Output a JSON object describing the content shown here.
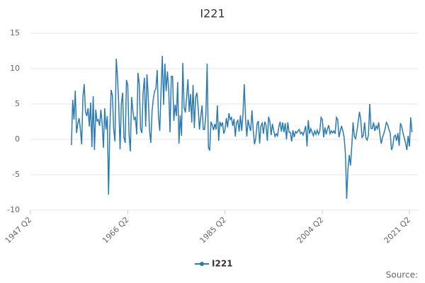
{
  "chart_data": {
    "type": "line",
    "title": "I221",
    "source": "Source:",
    "categories": [
      "1947 Q2",
      null,
      null,
      null,
      null,
      null,
      null,
      null,
      null,
      null,
      null,
      null,
      null,
      null,
      null,
      null,
      null,
      null,
      null,
      null,
      null,
      null,
      null,
      null,
      null,
      null,
      null,
      null,
      null,
      null,
      null,
      null,
      null,
      null,
      null,
      null,
      null,
      null,
      null,
      null,
      null,
      null,
      null,
      null,
      null,
      null,
      null,
      null,
      null,
      null,
      null,
      null,
      null,
      null,
      null,
      null,
      null,
      null,
      null,
      null,
      null,
      null,
      null,
      null,
      null,
      null,
      null,
      null,
      null,
      null,
      null,
      null,
      null,
      null,
      null,
      null,
      "1966 Q2",
      null,
      null,
      null,
      null,
      null,
      null,
      null,
      null,
      null,
      null,
      null,
      null,
      null,
      null,
      null,
      null,
      null,
      null,
      null,
      null,
      null,
      null,
      null,
      null,
      null,
      null,
      null,
      null,
      null,
      null,
      null,
      null,
      null,
      null,
      null,
      null,
      null,
      null,
      null,
      null,
      null,
      null,
      null,
      null,
      null,
      null,
      null,
      null,
      null,
      null,
      null,
      null,
      null,
      null,
      null,
      null,
      null,
      null,
      null,
      null,
      null,
      null,
      null,
      null,
      null,
      null,
      null,
      null,
      null,
      null,
      null,
      null,
      null,
      null,
      null,
      "1985 Q2",
      null,
      null,
      null,
      null,
      null,
      null,
      null,
      null,
      null,
      null,
      null,
      null,
      null,
      null,
      null,
      null,
      null,
      null,
      null,
      null,
      null,
      null,
      null,
      null,
      null,
      null,
      null,
      null,
      null,
      null,
      null,
      null,
      null,
      null,
      null,
      null,
      null,
      null,
      null,
      null,
      null,
      null,
      null,
      null,
      null,
      null,
      null,
      null,
      null,
      null,
      null,
      null,
      null,
      null,
      null,
      null,
      null,
      null,
      null,
      null,
      null,
      null,
      null,
      null,
      null,
      null,
      null,
      null,
      null,
      null,
      null,
      null,
      null,
      null,
      null,
      "2004 Q2",
      null,
      null,
      null,
      null,
      null,
      null,
      null,
      null,
      null,
      null,
      null,
      null,
      null,
      null,
      null,
      null,
      null,
      null,
      null,
      null,
      null,
      null,
      null,
      null,
      null,
      null,
      null,
      null,
      null,
      null,
      null,
      null,
      null,
      null,
      null,
      null,
      null,
      null,
      null,
      null,
      null,
      null,
      null,
      null,
      null,
      null,
      null,
      null,
      null,
      null,
      null,
      null,
      null,
      null,
      null,
      null,
      null,
      null,
      null,
      null,
      null,
      null,
      null,
      null,
      null,
      null,
      null,
      "2021 Q2",
      null,
      null
    ],
    "series": [
      {
        "name": "I221",
        "color": "#2b7bb3",
        "values": [
          null,
          null,
          null,
          null,
          null,
          null,
          null,
          null,
          null,
          null,
          null,
          null,
          null,
          null,
          null,
          null,
          null,
          null,
          null,
          null,
          null,
          null,
          null,
          null,
          null,
          null,
          null,
          null,
          null,
          null,
          null,
          null,
          -0.8,
          5.6,
          2.8,
          6.9,
          0.9,
          2.2,
          3,
          1.4,
          -0.7,
          6,
          7.8,
          3.9,
          3.3,
          4.4,
          1.8,
          5.2,
          -1.1,
          6.1,
          -1.5,
          4.2,
          2.6,
          2.8,
          1.9,
          4.2,
          2.2,
          -1.2,
          4.4,
          1.4,
          3.3,
          -7.8,
          1.5,
          7,
          6.2,
          1.5,
          -0.3,
          11.4,
          8.8,
          4.7,
          -1.4,
          5,
          6.6,
          0.3,
          -0.5,
          8.4,
          7.7,
          0.7,
          -1.7,
          6,
          4,
          2.8,
          3.1,
          0.7,
          9.4,
          7.8,
          1.5,
          0.9,
          6.6,
          8.7,
          1.8,
          9.2,
          6,
          1.3,
          -0.5,
          4,
          5.8,
          6.8,
          7.2,
          9.8,
          3.2,
          1.2,
          6.9,
          11.8,
          4.9,
          10.7,
          6.8,
          9.6,
          7,
          1,
          8.9,
          8.9,
          2.6,
          4.9,
          3.3,
          8.1,
          -0.6,
          3.4,
          0.5,
          10.8,
          4.5,
          3.8,
          6,
          8.5,
          3.9,
          6.4,
          2.4,
          7.7,
          1.6,
          5.9,
          6.6,
          4.5,
          1.4,
          3.2,
          4.8,
          1.4,
          1.4,
          3.5,
          10.7,
          -1.1,
          -1.6,
          2.5,
          2,
          1.3,
          2.2,
          1.4,
          4.8,
          -0.2,
          2.5,
          1.9,
          2.4,
          0.8,
          1.4,
          3,
          1.7,
          3.7,
          2.8,
          3.1,
          1.9,
          2.9,
          0.4,
          2.4,
          2.7,
          1.1,
          3.4,
          1.2,
          3.6,
          7.8,
          3,
          0.4,
          2.8,
          1.8,
          1.2,
          4.1,
          1.3,
          -0.7,
          0.2,
          2.2,
          2.6,
          -0.6,
          1.9,
          2.3,
          0.8,
          2.5,
          2,
          -0.2,
          3.2,
          2.5,
          0.6,
          2.2,
          1.2,
          0.4,
          0.8,
          0.5,
          1.8,
          2.5,
          1.1,
          2.4,
          1,
          2.3,
          0,
          2.4,
          1,
          1,
          -0.3,
          1.3,
          0.3,
          1.1,
          0.9,
          1.2,
          1.4,
          0.8,
          1,
          0.6,
          1.2,
          1.9,
          -1,
          2.7,
          0.8,
          1.5,
          1,
          0.5,
          1.2,
          0.7,
          1.3,
          0.7,
          1.2,
          3.1,
          2.8,
          0.3,
          1.7,
          0.7,
          1.5,
          2,
          0.8,
          1.2,
          0.9,
          1.2,
          0.8,
          3.1,
          2.8,
          0.3,
          1.2,
          1.9,
          1.2,
          0.3,
          -2,
          -8.4,
          -4.2,
          -2.2,
          -3.7,
          -0.9,
          2.4,
          0.4,
          0.1,
          1.2,
          2.5,
          3.9,
          2.7,
          0.2,
          0.6,
          2.4,
          0.2,
          -0.1,
          0.6,
          5,
          1.6,
          1.5,
          2.4,
          1.2,
          1.9,
          1.5,
          2.4,
          0.6,
          -0.6,
          0.3,
          0.8,
          1.5,
          2.4,
          2.1,
          1.4,
          0.9,
          -1.5,
          -1,
          0.4,
          0.6,
          -0.2,
          0.9,
          -0.9,
          2.3,
          1.8,
          0.9,
          0.2,
          -0.5,
          -1.5,
          0.5,
          -1,
          3.1,
          1
        ]
      }
    ],
    "ylim": [
      -10,
      15
    ],
    "yticks": [
      -10,
      -5,
      0,
      5,
      10,
      15
    ],
    "grid": true,
    "legend": "bottom"
  }
}
